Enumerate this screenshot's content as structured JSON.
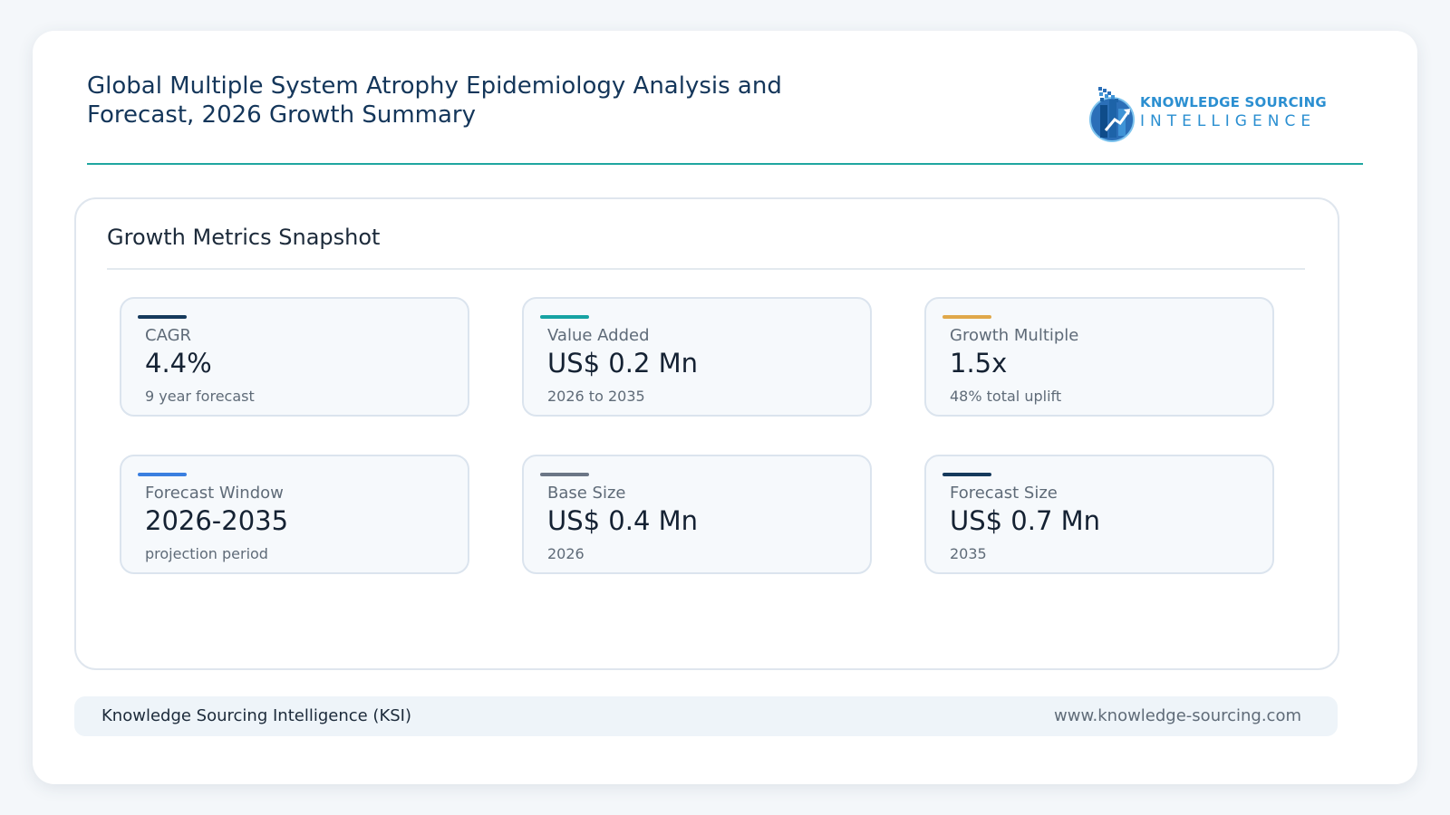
{
  "header": {
    "title": "Global Multiple System Atrophy Epidemiology Analysis and Forecast, 2026 Growth Summary",
    "logo": {
      "line1": "KNOWLEDGE SOURCING",
      "line2": "INTELLIGENCE",
      "icon": "building-globe-logo-icon"
    }
  },
  "panel": {
    "title": "Growth Metrics Snapshot",
    "cards": [
      {
        "label": "CAGR",
        "value": "4.4%",
        "sub": "9 year forecast",
        "accent": "#163a5c"
      },
      {
        "label": "Value Added",
        "value": "US$ 0.2 Mn",
        "sub": "2026 to 2035",
        "accent": "#17a3a3"
      },
      {
        "label": "Growth Multiple",
        "value": "1.5x",
        "sub": "48% total uplift",
        "accent": "#e0a84a"
      },
      {
        "label": "Forecast Window",
        "value": "2026-2035",
        "sub": "projection period",
        "accent": "#3a7fe0"
      },
      {
        "label": "Base Size",
        "value": "US$ 0.4 Mn",
        "sub": "2026",
        "accent": "#6b7686"
      },
      {
        "label": "Forecast Size",
        "value": "US$ 0.7 Mn",
        "sub": "2035",
        "accent": "#163a5c"
      }
    ]
  },
  "footer": {
    "left": "Knowledge Sourcing Intelligence (KSI)",
    "right": "www.knowledge-sourcing.com"
  },
  "colors": {
    "brand": "#2b8fd1",
    "title": "#14365a",
    "divider": "#1fa6a0"
  }
}
